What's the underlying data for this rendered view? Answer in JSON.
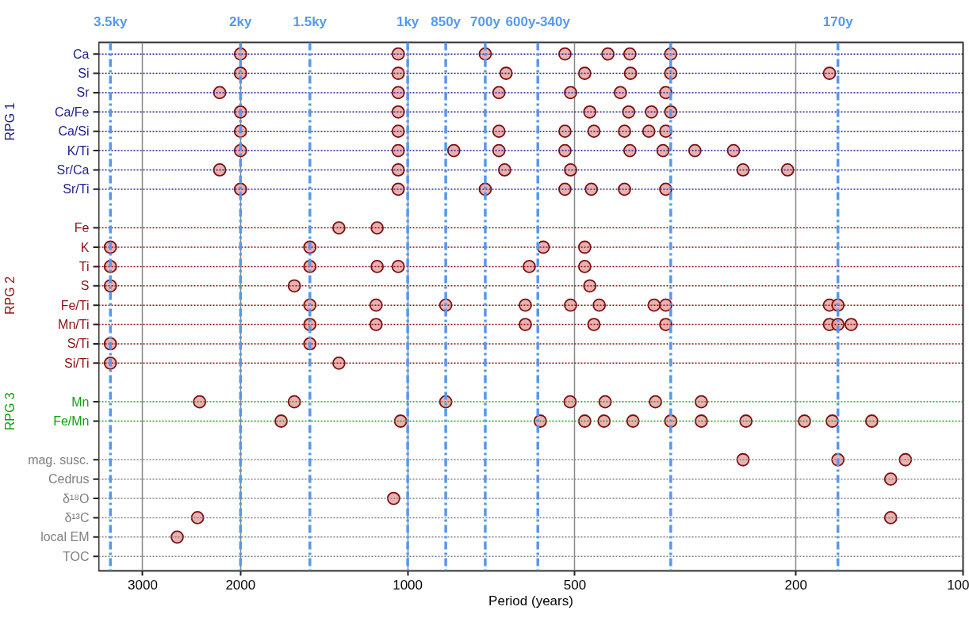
{
  "chart_data": {
    "type": "scatter",
    "orientation": "horizontal",
    "xlabel": "Period (years)",
    "log": "x",
    "xlim": [
      3600,
      100
    ],
    "xticks": [
      3000,
      2000,
      1000,
      500,
      200,
      100
    ],
    "grid": "x",
    "marker": "circle",
    "categories": [
      "Ca",
      "Si",
      "Sr",
      "Ca/Fe",
      "Ca/Si",
      "K/Ti",
      "Sr/Ca",
      "Sr/Ti",
      null,
      "Fe",
      "K",
      "Ti",
      "S",
      "Fe/Ti",
      "Mn/Ti",
      "S/Ti",
      "Si/Ti",
      null,
      "Mn",
      "Fe/Mn",
      null,
      "mag. susc.",
      "Cedrus",
      "δ¹⁸O",
      "δ¹³C",
      "local EM",
      "TOC"
    ],
    "annotations": [
      "RPG 1",
      "RPG 2",
      "RPG 3"
    ],
    "series": [
      {
        "color": "#e8a8a8",
        "x": [
          "Ca",
          "Ca",
          "Ca",
          "Ca",
          "Ca",
          "Ca",
          "Ca",
          "Si",
          "Si",
          "Si",
          "Si",
          "Si",
          "Si",
          "Si",
          "Sr",
          "Sr",
          "Sr",
          "Sr",
          "Sr",
          "Sr",
          "Ca/Fe",
          "Ca/Fe",
          "Ca/Fe",
          "Ca/Fe",
          "Ca/Fe",
          "Ca/Fe",
          "Ca/Si",
          "Ca/Si",
          "Ca/Si",
          "Ca/Si",
          "Ca/Si",
          "Ca/Si",
          "Ca/Si",
          "Ca/Si",
          "K/Ti",
          "K/Ti",
          "K/Ti",
          "K/Ti",
          "K/Ti",
          "K/Ti",
          "K/Ti",
          "K/Ti",
          "K/Ti",
          "Sr/Ca",
          "Sr/Ca",
          "Sr/Ca",
          "Sr/Ca",
          "Sr/Ca",
          "Sr/Ca",
          "Sr/Ti",
          "Sr/Ti",
          "Sr/Ti",
          "Sr/Ti",
          "Sr/Ti",
          "Sr/Ti",
          "Sr/Ti",
          "Fe",
          "Fe",
          "K",
          "K",
          "K",
          "K",
          "Ti",
          "Ti",
          "Ti",
          "Ti",
          "Ti",
          "Ti",
          "S",
          "S",
          "S",
          "Fe/Ti",
          "Fe/Ti",
          "Fe/Ti",
          "Fe/Ti",
          "Fe/Ti",
          "Fe/Ti",
          "Fe/Ti",
          "Fe/Ti",
          "Fe/Ti",
          "Fe/Ti",
          "Mn/Ti",
          "Mn/Ti",
          "Mn/Ti",
          "Mn/Ti",
          "Mn/Ti",
          "Mn/Ti",
          "Mn/Ti",
          "Mn/Ti",
          "S/Ti",
          "S/Ti",
          "Si/Ti",
          "Si/Ti",
          "Mn",
          "Mn",
          "Mn",
          "Mn",
          "Mn",
          "Mn",
          "Mn",
          "Fe/Mn",
          "Fe/Mn",
          "Fe/Mn",
          "Fe/Mn",
          "Fe/Mn",
          "Fe/Mn",
          "Fe/Mn",
          "Fe/Mn",
          "Fe/Mn",
          "Fe/Mn",
          "Fe/Mn",
          "Fe/Mn",
          "mag. susc.",
          "mag. susc.",
          "mag. susc.",
          "Cedrus",
          "δ¹⁸O",
          "δ¹³C",
          "δ¹³C",
          "local EM"
        ],
        "values": [
          2000,
          1040,
          725,
          521,
          436,
          398,
          336,
          2000,
          1040,
          665,
          480,
          397,
          336,
          174,
          2180,
          1040,
          685,
          509,
          414,
          343,
          2000,
          1040,
          470,
          400,
          364,
          336,
          2000,
          1040,
          685,
          521,
          462,
          407,
          368,
          343,
          2000,
          1040,
          826,
          685,
          521,
          398,
          347,
          304,
          259,
          2180,
          1040,
          669,
          509,
          249,
          207,
          2000,
          1040,
          725,
          521,
          467,
          407,
          343,
          1330,
          1135,
          3430,
          1500,
          570,
          480,
          3430,
          1500,
          1135,
          1040,
          604,
          480,
          3430,
          1600,
          470,
          1500,
          1140,
          854,
          614,
          509,
          452,
          360,
          343,
          174,
          168,
          1500,
          1140,
          614,
          462,
          343,
          174,
          168,
          159,
          3430,
          1500,
          3430,
          1330,
          2370,
          1600,
          854,
          510,
          441,
          358,
          296,
          1690,
          1030,
          577,
          480,
          443,
          393,
          336,
          296,
          246,
          193,
          172,
          146,
          249,
          168,
          127,
          135,
          1060,
          2390,
          135,
          2600
        ]
      }
    ],
    "ref_lines": [
      {
        "axis": "x",
        "value": 3430,
        "label": "3.5ky",
        "color": "#5599ee",
        "line_style": "dashed"
      },
      {
        "axis": "x",
        "value": 2000,
        "label": "2ky",
        "color": "#5599ee",
        "line_style": "dashed"
      },
      {
        "axis": "x",
        "value": 1500,
        "label": "1.5ky",
        "color": "#5599ee",
        "line_style": "dashed"
      },
      {
        "axis": "x",
        "value": 1000,
        "label": "1ky",
        "color": "#5599ee",
        "line_style": "dashed"
      },
      {
        "axis": "x",
        "value": 854,
        "label": "850y",
        "color": "#5599ee",
        "line_style": "dashed"
      },
      {
        "axis": "x",
        "value": 725,
        "label": "700y",
        "color": "#5599ee",
        "line_style": "dashed"
      },
      {
        "axis": "x",
        "value": 583,
        "label": "600y-340y",
        "color": "#5599ee",
        "line_style": "dashed"
      },
      {
        "axis": "x",
        "value": 336,
        "color": "#5599ee",
        "line_style": "dashed"
      },
      {
        "axis": "x",
        "value": 168,
        "label": "170y",
        "color": "#5599ee",
        "line_style": "dashed"
      },
      {
        "axis": "y",
        "value": "Ca",
        "color": "#1c1c8c",
        "line_style": "dotted"
      },
      {
        "axis": "y",
        "value": "Si",
        "color": "#1c1c8c",
        "line_style": "dotted"
      },
      {
        "axis": "y",
        "value": "Sr",
        "color": "#1c1c8c",
        "line_style": "dotted"
      },
      {
        "axis": "y",
        "value": "Ca/Fe",
        "color": "#1c1c8c",
        "line_style": "dotted"
      },
      {
        "axis": "y",
        "value": "Ca/Si",
        "color": "#1c1c8c",
        "line_style": "dotted"
      },
      {
        "axis": "y",
        "value": "K/Ti",
        "color": "#1c1c8c",
        "line_style": "dotted"
      },
      {
        "axis": "y",
        "value": "Sr/Ca",
        "color": "#1c1c8c",
        "line_style": "dotted"
      },
      {
        "axis": "y",
        "value": "Sr/Ti",
        "color": "#1c1c8c",
        "line_style": "dotted"
      },
      {
        "axis": "y",
        "value": "Fe",
        "color": "#8b1010",
        "line_style": "dotted"
      },
      {
        "axis": "y",
        "value": "K",
        "color": "#8b1010",
        "line_style": "dotted"
      },
      {
        "axis": "y",
        "value": "Ti",
        "color": "#8b1010",
        "line_style": "dotted"
      },
      {
        "axis": "y",
        "value": "S",
        "color": "#8b1010",
        "line_style": "dotted"
      },
      {
        "axis": "y",
        "value": "Fe/Ti",
        "color": "#8b1010",
        "line_style": "dotted"
      },
      {
        "axis": "y",
        "value": "Mn/Ti",
        "color": "#8b1010",
        "line_style": "dotted"
      },
      {
        "axis": "y",
        "value": "S/Ti",
        "color": "#8b1010",
        "line_style": "dotted"
      },
      {
        "axis": "y",
        "value": "Si/Ti",
        "color": "#8b1010",
        "line_style": "dotted"
      },
      {
        "axis": "y",
        "value": "Mn",
        "color": "#10a010",
        "line_style": "dotted"
      },
      {
        "axis": "y",
        "value": "Fe/Mn",
        "color": "#10a010",
        "line_style": "dotted"
      },
      {
        "axis": "y",
        "value": "mag. susc.",
        "color": "#808080",
        "line_style": "dotted"
      },
      {
        "axis": "y",
        "value": "Cedrus",
        "color": "#808080",
        "line_style": "dotted"
      },
      {
        "axis": "y",
        "value": "δ¹⁸O",
        "color": "#808080",
        "line_style": "dotted"
      },
      {
        "axis": "y",
        "value": "δ¹³C",
        "color": "#808080",
        "line_style": "dotted"
      },
      {
        "axis": "y",
        "value": "local EM",
        "color": "#808080",
        "line_style": "dotted"
      },
      {
        "axis": "y",
        "value": "TOC",
        "color": "#808080",
        "line_style": "dotted"
      }
    ]
  }
}
